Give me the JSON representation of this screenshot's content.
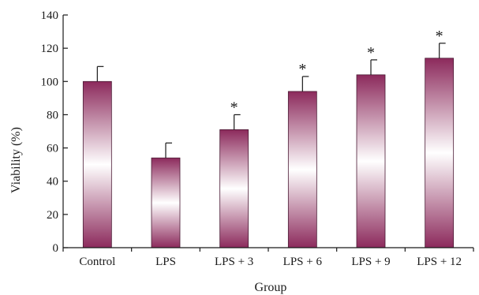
{
  "chart_data": {
    "type": "bar",
    "title": "",
    "xlabel": "Group",
    "ylabel": "Viability (%)",
    "ylim": [
      0,
      140
    ],
    "yticks": [
      0,
      20,
      40,
      60,
      80,
      100,
      120,
      140
    ],
    "categories": [
      "Control",
      "LPS",
      "LPS + 3",
      "LPS + 6",
      "LPS + 9",
      "LPS + 12"
    ],
    "values": [
      100,
      54,
      71,
      94,
      104,
      114
    ],
    "errors": [
      9,
      9,
      9,
      9,
      9,
      9
    ],
    "significance": [
      "",
      "",
      "*",
      "*",
      "*",
      "*"
    ],
    "grid": false,
    "legend": "none",
    "colors": {
      "bar_edge": "#8c2a5c",
      "bar_center": "#ffffff",
      "axis": "#1a1a1a"
    }
  }
}
